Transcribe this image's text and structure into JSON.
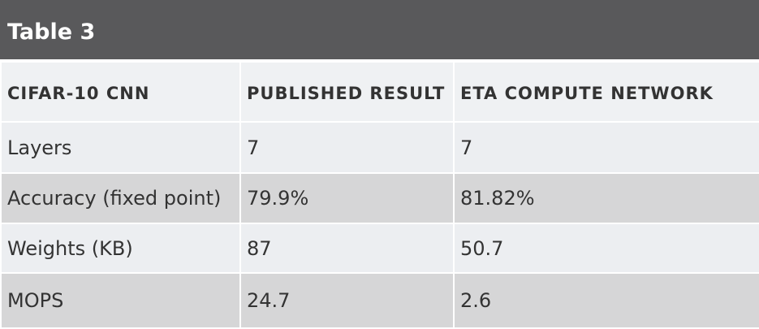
{
  "header": {
    "title": "Table 3"
  },
  "table": {
    "columns": [
      "CIFAR-10 CNN",
      "PUBLISHED RESULT",
      "ETA COMPUTE NETWORK"
    ],
    "rows": [
      [
        "Layers",
        "7",
        "7"
      ],
      [
        "Accuracy (fixed point)",
        "79.9%",
        "81.82%"
      ],
      [
        "Weights (KB)",
        "87",
        "50.7"
      ],
      [
        "MOPS",
        "24.7",
        "2.6"
      ]
    ]
  }
}
